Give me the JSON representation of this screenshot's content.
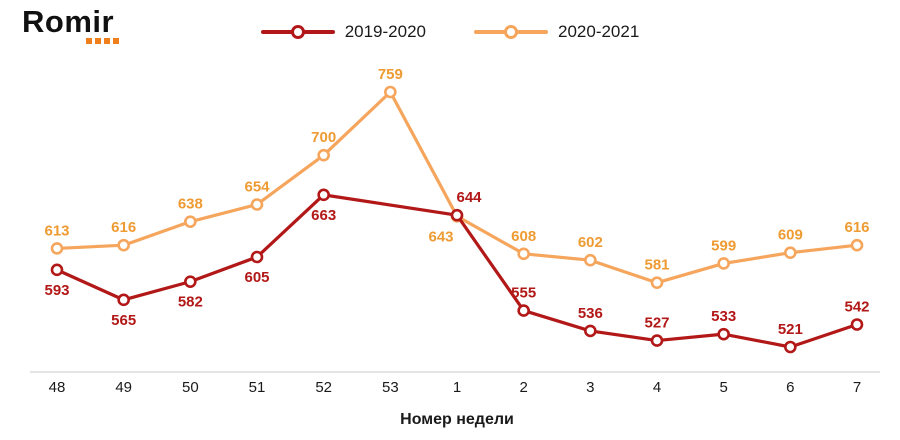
{
  "logo": {
    "text": "Romir"
  },
  "colors": {
    "series_2019_2020": "#b21817",
    "series_2020_2021_line": "#f5a55c",
    "series_2020_2021_label": "#ee9b33",
    "axis_line": "#c9c9c9",
    "logo_dot_orange": "#ee7f1b"
  },
  "chart_data": {
    "type": "line",
    "title": "",
    "xlabel": "Номер недели",
    "ylabel": "",
    "x_tick_labels": [
      "48",
      "49",
      "50",
      "51",
      "52",
      "53",
      "1",
      "2",
      "3",
      "4",
      "5",
      "6",
      "7"
    ],
    "ylim": [
      500,
      780
    ],
    "grid": false,
    "legend_position": "top-center",
    "series": [
      {
        "name": "2019-2020",
        "color": "#b21817",
        "label_color": "#b21817",
        "values": [
          593,
          565,
          582,
          605,
          663,
          null,
          644,
          555,
          536,
          527,
          533,
          521,
          542
        ],
        "label_pos": [
          "below",
          "below",
          "below",
          "below",
          "below",
          null,
          "above",
          "above",
          "above",
          "above",
          "above",
          "above",
          "above"
        ],
        "label_dx": [
          0,
          0,
          0,
          0,
          0,
          0,
          12,
          0,
          0,
          0,
          0,
          0,
          0
        ]
      },
      {
        "name": "2020-2021",
        "color": "#f5a55c",
        "label_color": "#ee9b33",
        "values": [
          613,
          616,
          638,
          654,
          700,
          759,
          643,
          608,
          602,
          581,
          599,
          609,
          616
        ],
        "label_pos": [
          "above",
          "above",
          "above",
          "above",
          "above",
          "above",
          "below",
          "above",
          "above",
          "above",
          "above",
          "above",
          "above"
        ],
        "label_dx": [
          0,
          0,
          0,
          0,
          0,
          0,
          -16,
          0,
          0,
          0,
          0,
          0,
          0
        ]
      }
    ]
  }
}
